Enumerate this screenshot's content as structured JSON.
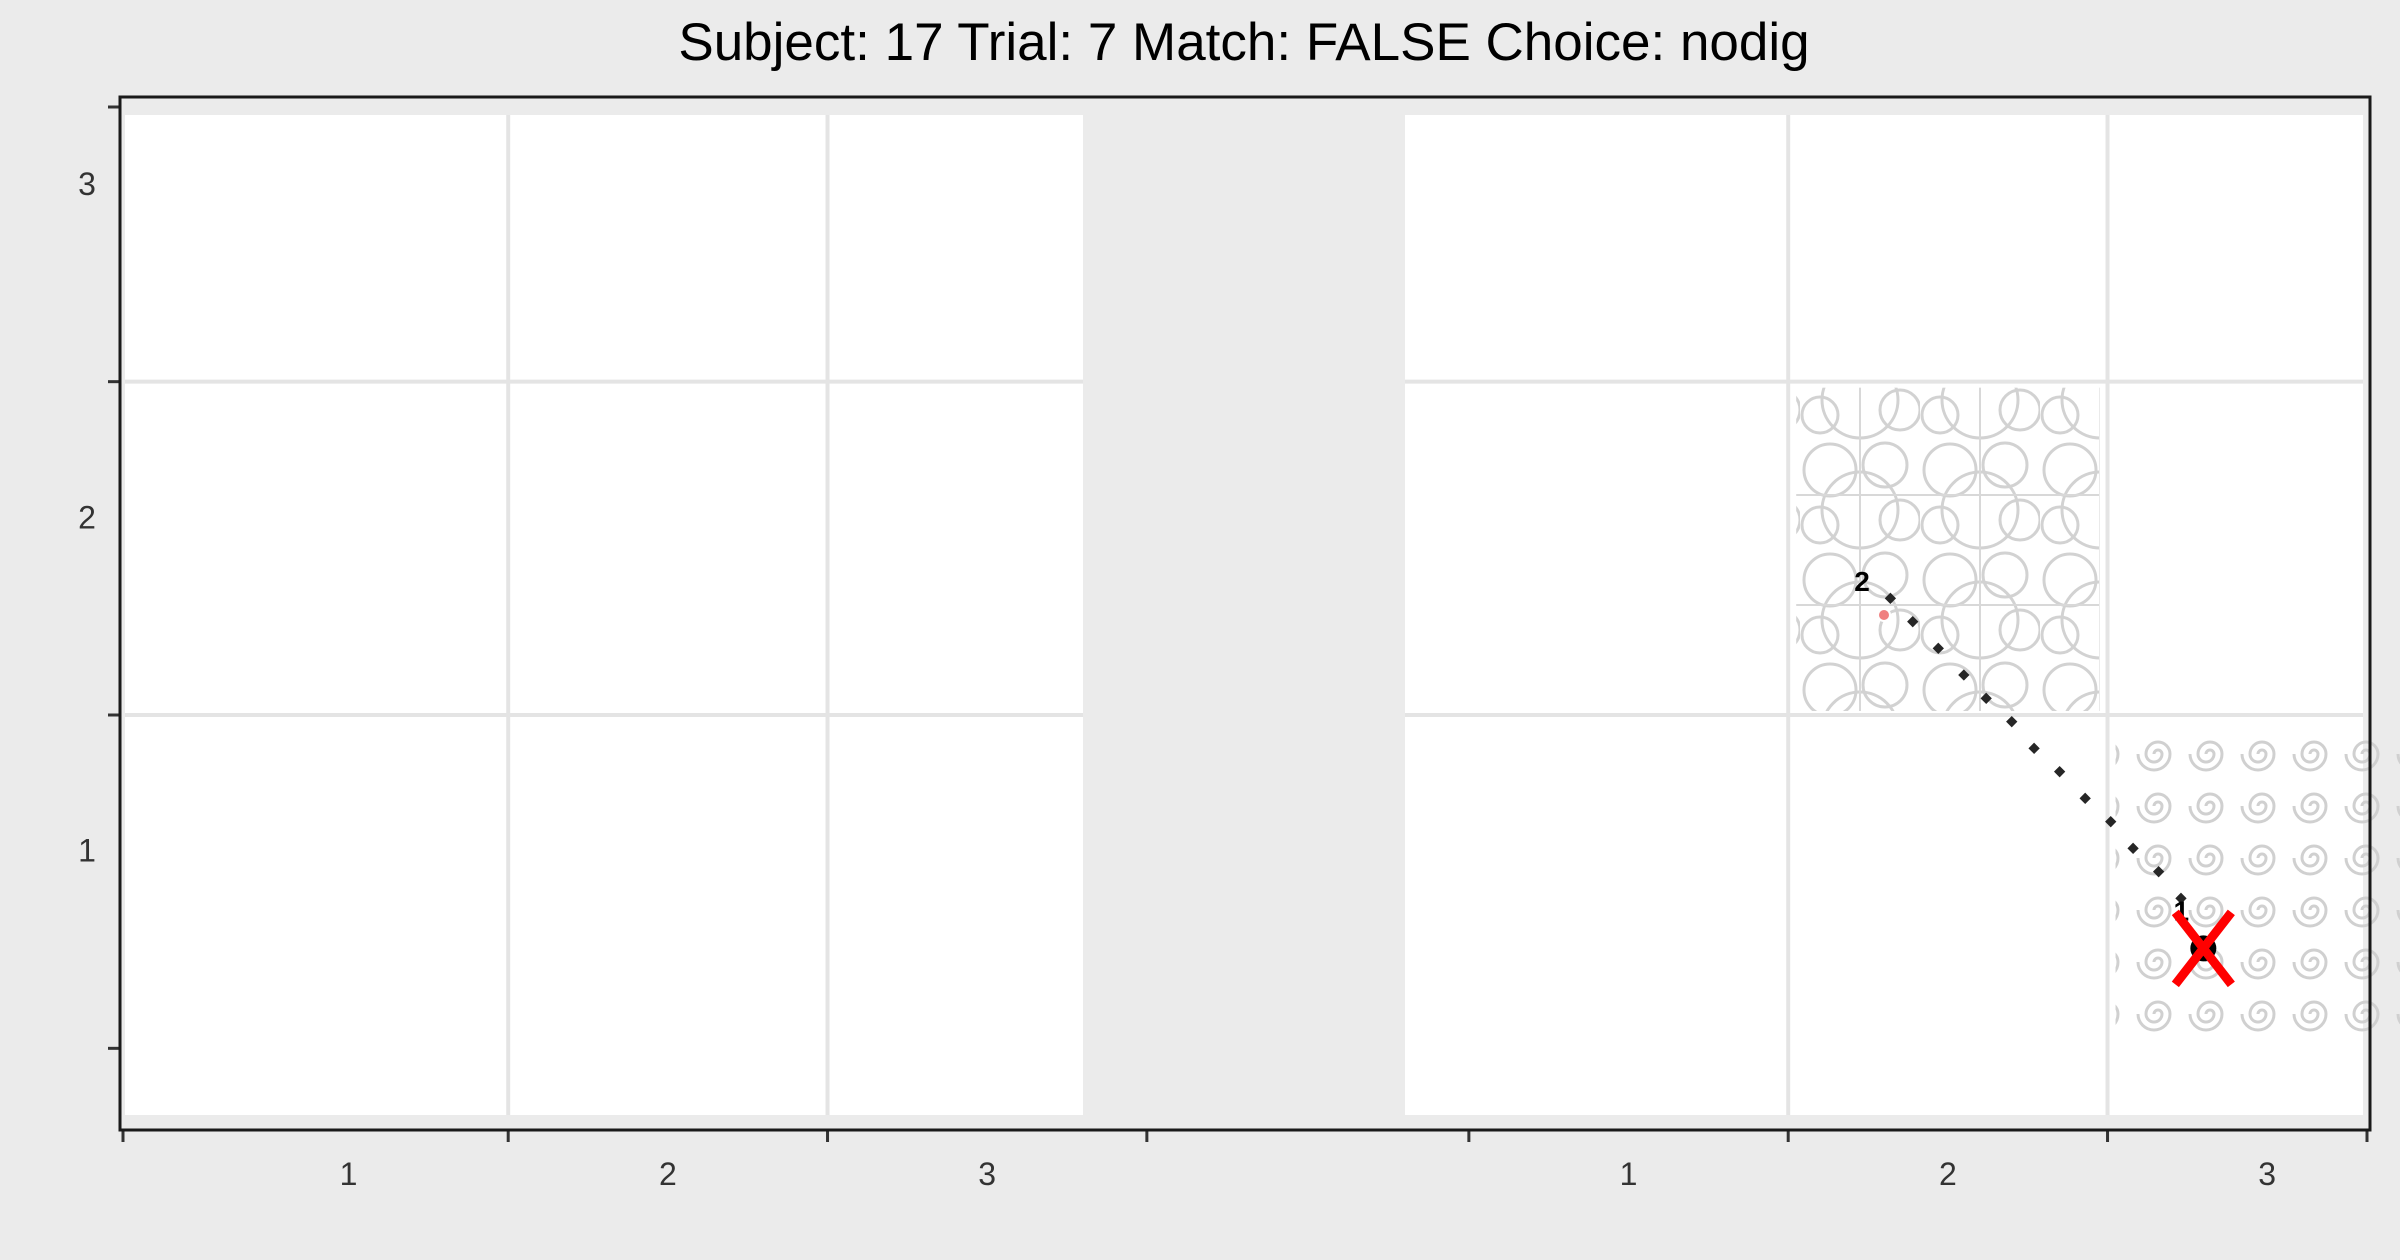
{
  "chart_data": {
    "type": "scatter",
    "title": "Subject:  17  Trial:  7  Match: FALSE  Choice: nodig",
    "xlabel": "",
    "ylabel": "",
    "grid": true,
    "panels": [
      {
        "xlim": [
          0.3,
          3.3
        ],
        "ylim": [
          0.3,
          3.3
        ],
        "x_ticks": [
          "1",
          "2",
          "3"
        ],
        "y_ticks": [
          "1",
          "2",
          "3"
        ],
        "textured_cells": [],
        "path": [],
        "points": []
      },
      {
        "xlim": [
          0.3,
          3.3
        ],
        "ylim": [
          0.3,
          3.3
        ],
        "x_ticks": [
          "1",
          "2",
          "3"
        ],
        "y_ticks": [],
        "textured_cells": [
          {
            "col": 2,
            "row": 2,
            "pattern": "circles"
          },
          {
            "col": 3,
            "row": 1,
            "pattern": "spirals"
          }
        ],
        "path": [
          {
            "x": 1.82,
            "y": 1.85
          },
          {
            "x": 1.89,
            "y": 1.78
          },
          {
            "x": 1.97,
            "y": 1.7
          },
          {
            "x": 2.05,
            "y": 1.62
          },
          {
            "x": 2.12,
            "y": 1.55
          },
          {
            "x": 2.2,
            "y": 1.48
          },
          {
            "x": 2.27,
            "y": 1.4
          },
          {
            "x": 2.35,
            "y": 1.33
          },
          {
            "x": 2.43,
            "y": 1.25
          },
          {
            "x": 2.51,
            "y": 1.18
          },
          {
            "x": 2.58,
            "y": 1.1
          },
          {
            "x": 2.66,
            "y": 1.03
          },
          {
            "x": 2.73,
            "y": 0.95
          }
        ],
        "points": [
          {
            "label": "2",
            "x": 1.8,
            "y": 1.8,
            "color": "#f08080",
            "size": "small"
          },
          {
            "label": "1",
            "x": 2.8,
            "y": 0.8,
            "color": "#000000",
            "size": "large"
          }
        ],
        "cross": {
          "x": 2.8,
          "y": 0.8,
          "color": "#ff0000"
        }
      }
    ]
  }
}
